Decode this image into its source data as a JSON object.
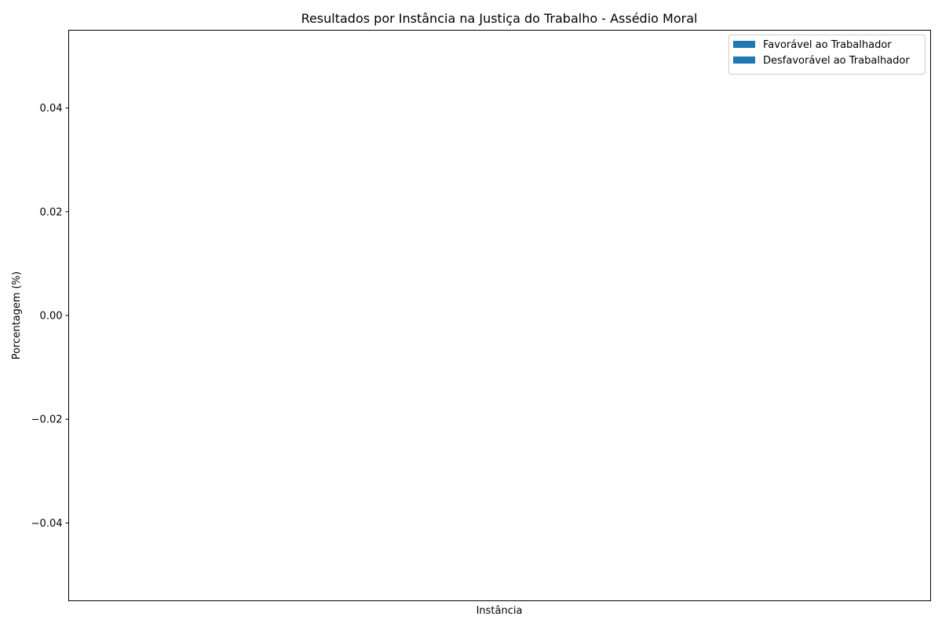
{
  "chart_data": {
    "type": "bar",
    "title": "Resultados por Instância na Justiça do Trabalho - Assédio Moral",
    "xlabel": "Instância",
    "ylabel": "Porcentagem (%)",
    "categories": [],
    "series": [
      {
        "name": "Favorável ao Trabalhador",
        "values": [],
        "color": "#1f77b4"
      },
      {
        "name": "Desfavorável ao Trabalhador",
        "values": [],
        "color": "#1f77b4"
      }
    ],
    "ylim": [
      -0.055,
      0.055
    ],
    "yticks": [
      -0.04,
      -0.02,
      0.0,
      0.02,
      0.04
    ],
    "ytick_labels": [
      "−0.04",
      "−0.02",
      "0.00",
      "0.02",
      "0.04"
    ],
    "grid": false,
    "legend_position": "top-right"
  }
}
